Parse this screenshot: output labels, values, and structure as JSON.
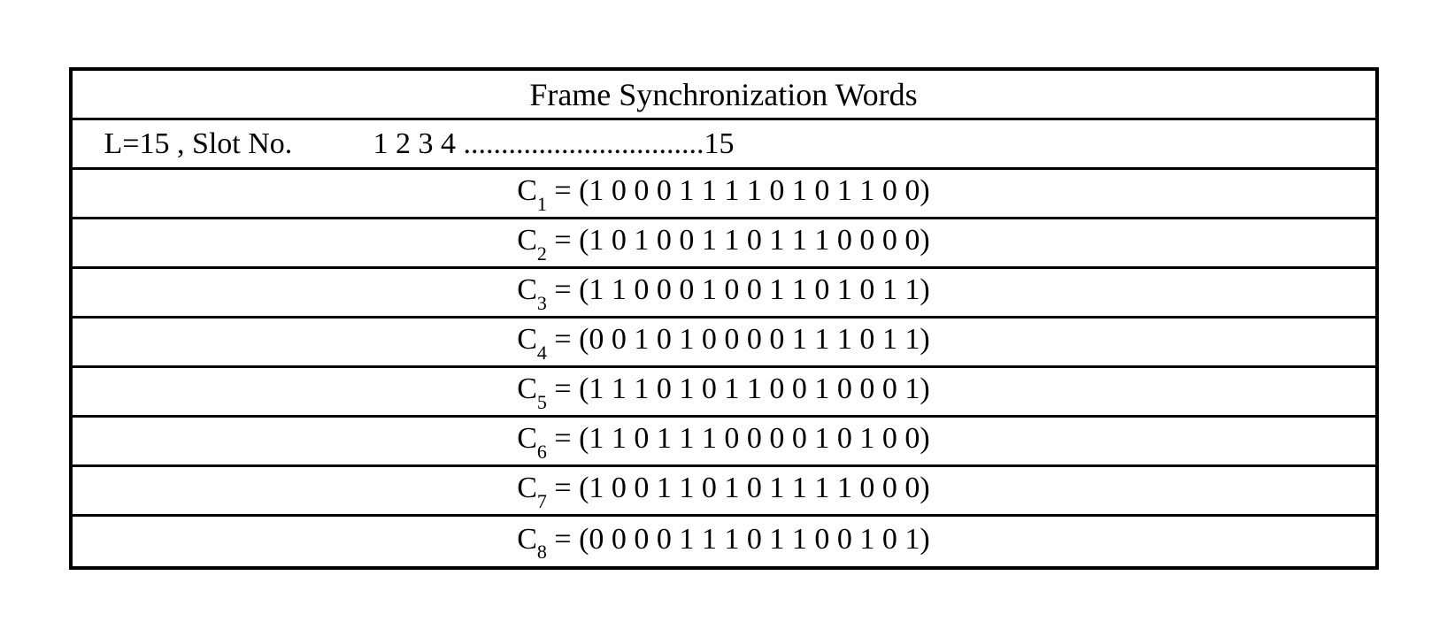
{
  "table": {
    "title": "Frame Synchronization Words",
    "slot_row": {
      "label": "L=15 , Slot No.",
      "numbers": "1 2 3 4 ................................15"
    },
    "codes": [
      {
        "sub": "1",
        "value": "(1 0 0 0 1 1 1 1 0 1 0 1 1 0 0)"
      },
      {
        "sub": "2",
        "value": "(1 0 1 0 0 1 1 0 1 1 1 0 0 0 0)"
      },
      {
        "sub": "3",
        "value": "(1 1 0 0 0 1 0 0 1 1 0 1 0 1 1)"
      },
      {
        "sub": "4",
        "value": "(0 0 1 0 1 0 0 0 0 1 1 1 0 1 1)"
      },
      {
        "sub": "5",
        "value": "(1 1 1 0 1 0 1 1 0 0 1 0 0 0 1)"
      },
      {
        "sub": "6",
        "value": "(1 1 0 1 1 1 0 0 0 0 1 0 1 0 0)"
      },
      {
        "sub": "7",
        "value": "(1 0 0 1 1 0 1 0 1 1 1 1 0 0 0)"
      },
      {
        "sub": "8",
        "value": "(0 0 0 0 1 1 1 0 1 1 0 0 1 0 1)"
      }
    ]
  }
}
